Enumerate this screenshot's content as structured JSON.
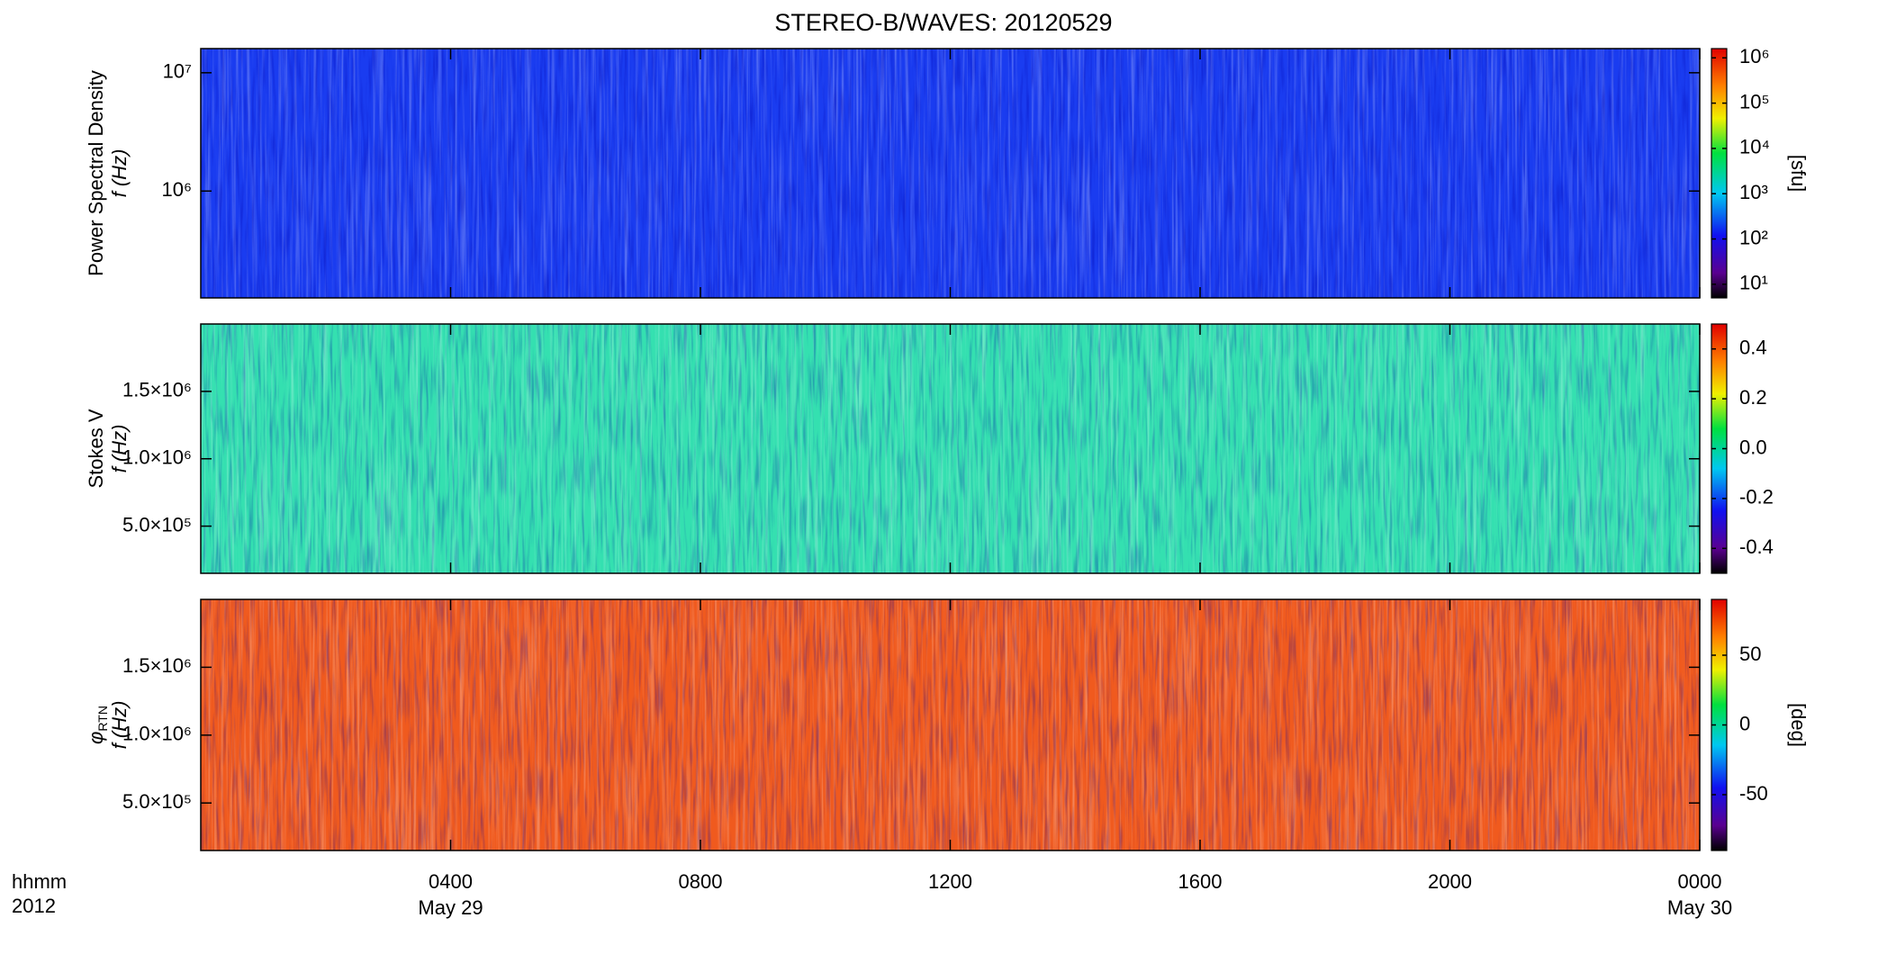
{
  "chart_data": {
    "type": "heatmap",
    "title": "STEREO-B/WAVES: 20120529",
    "xlim": [
      0,
      24
    ],
    "xticks": [
      {
        "value": 4,
        "label": "0400"
      },
      {
        "value": 8,
        "label": "0800"
      },
      {
        "value": 12,
        "label": "1200"
      },
      {
        "value": 16,
        "label": "1600"
      },
      {
        "value": 20,
        "label": "2000"
      },
      {
        "value": 24,
        "label": "0000"
      }
    ],
    "x_date_labels": [
      {
        "value": 4,
        "label": "May 29"
      },
      {
        "value": 24,
        "label": "May 30"
      }
    ],
    "x_corner_labels": [
      "hhmm",
      "2012"
    ],
    "panels": [
      {
        "ylabel": [
          "Power Spectral Density",
          "f (Hz)"
        ],
        "yscale": "log",
        "ylim": [
          125000,
          16000000
        ],
        "yticks": [
          {
            "value": 1000000,
            "label": "10⁶"
          },
          {
            "value": 10000000,
            "label": "10⁷"
          }
        ],
        "cscale": "log",
        "clim": [
          5,
          1600000
        ],
        "cticks": [
          {
            "value": 10,
            "label": "10¹"
          },
          {
            "value": 100,
            "label": "10²"
          },
          {
            "value": 1000,
            "label": "10³"
          },
          {
            "value": 10000,
            "label": "10⁴"
          },
          {
            "value": 100000,
            "label": "10⁵"
          },
          {
            "value": 1000000,
            "label": "10⁶"
          }
        ],
        "clabel": "[sfu]",
        "fill": "#1a3cf0"
      },
      {
        "ylabel": [
          "Stokes V",
          "f (Hz)"
        ],
        "yscale": "linear",
        "ylim": [
          150000,
          2000000
        ],
        "yticks": [
          {
            "value": 500000,
            "label": "5.0×10⁵"
          },
          {
            "value": 1000000,
            "label": "1.0×10⁶"
          },
          {
            "value": 1500000,
            "label": "1.5×10⁶"
          }
        ],
        "cscale": "linear",
        "clim": [
          -0.5,
          0.5
        ],
        "cticks": [
          {
            "value": -0.4,
            "label": "-0.4"
          },
          {
            "value": -0.2,
            "label": "-0.2"
          },
          {
            "value": 0.0,
            "label": "0.0"
          },
          {
            "value": 0.2,
            "label": "0.2"
          },
          {
            "value": 0.4,
            "label": "0.4"
          }
        ],
        "fill": "#34e0b0"
      },
      {
        "ylabel": [
          "φ",
          "f (Hz)"
        ],
        "ylabel_sub": "RTN",
        "yscale": "linear",
        "ylim": [
          150000,
          2000000
        ],
        "yticks": [
          {
            "value": 500000,
            "label": "5.0×10⁵"
          },
          {
            "value": 1000000,
            "label": "1.0×10⁶"
          },
          {
            "value": 1500000,
            "label": "1.5×10⁶"
          }
        ],
        "cscale": "linear",
        "clim": [
          -90,
          90
        ],
        "cticks": [
          -50,
          0,
          50
        ],
        "clabel": "[deg]",
        "fill": "#f05a1e"
      }
    ]
  }
}
